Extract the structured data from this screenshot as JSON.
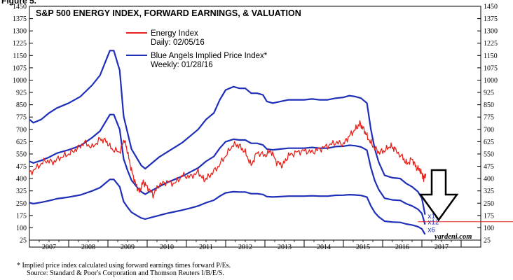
{
  "figure_label": "Figure 5.",
  "chart_data": {
    "type": "line",
    "title": "S&P 500 ENERGY INDEX, FORWARD EARNINGS, & VALUATION",
    "y_ticks": [
      1450,
      1375,
      1300,
      1225,
      1150,
      1075,
      1000,
      925,
      850,
      775,
      700,
      625,
      550,
      475,
      400,
      325,
      250,
      175,
      100,
      25
    ],
    "ylim": [
      25,
      1450
    ],
    "x_categories": [
      "2007",
      "2008",
      "2009",
      "2010",
      "2011",
      "2012",
      "2013",
      "2014",
      "2015",
      "2016",
      "2017"
    ],
    "xlim": [
      2006.0,
      2017.5
    ],
    "legend": [
      {
        "label": "Energy Index",
        "sub": "Daily: 02/05/16",
        "color": "#e8221b"
      },
      {
        "label": "Blue Angels Implied Price Index*",
        "sub": "Weekly: 01/28/16",
        "color": "#1f2fb8"
      }
    ],
    "series": [
      {
        "name": "Energy Index",
        "color": "#e8221b",
        "points": [
          [
            2006.0,
            430
          ],
          [
            2006.2,
            470
          ],
          [
            2006.4,
            510
          ],
          [
            2006.6,
            500
          ],
          [
            2006.8,
            530
          ],
          [
            2007.0,
            550
          ],
          [
            2007.2,
            580
          ],
          [
            2007.4,
            620
          ],
          [
            2007.6,
            590
          ],
          [
            2007.8,
            640
          ],
          [
            2007.95,
            630
          ],
          [
            2008.1,
            580
          ],
          [
            2008.3,
            560
          ],
          [
            2008.42,
            640
          ],
          [
            2008.5,
            560
          ],
          [
            2008.6,
            450
          ],
          [
            2008.7,
            370
          ],
          [
            2008.8,
            320
          ],
          [
            2008.9,
            380
          ],
          [
            2009.0,
            350
          ],
          [
            2009.15,
            300
          ],
          [
            2009.3,
            360
          ],
          [
            2009.5,
            380
          ],
          [
            2009.7,
            370
          ],
          [
            2009.9,
            420
          ],
          [
            2010.1,
            410
          ],
          [
            2010.3,
            440
          ],
          [
            2010.45,
            390
          ],
          [
            2010.6,
            420
          ],
          [
            2010.8,
            470
          ],
          [
            2011.0,
            540
          ],
          [
            2011.2,
            610
          ],
          [
            2011.35,
            600
          ],
          [
            2011.5,
            560
          ],
          [
            2011.65,
            480
          ],
          [
            2011.8,
            560
          ],
          [
            2012.0,
            540
          ],
          [
            2012.15,
            570
          ],
          [
            2012.3,
            500
          ],
          [
            2012.45,
            480
          ],
          [
            2012.6,
            540
          ],
          [
            2012.8,
            560
          ],
          [
            2013.0,
            570
          ],
          [
            2013.2,
            560
          ],
          [
            2013.4,
            580
          ],
          [
            2013.6,
            600
          ],
          [
            2013.8,
            620
          ],
          [
            2014.0,
            610
          ],
          [
            2014.15,
            660
          ],
          [
            2014.3,
            700
          ],
          [
            2014.42,
            735
          ],
          [
            2014.52,
            700
          ],
          [
            2014.62,
            650
          ],
          [
            2014.75,
            600
          ],
          [
            2014.9,
            560
          ],
          [
            2015.05,
            570
          ],
          [
            2015.2,
            600
          ],
          [
            2015.3,
            580
          ],
          [
            2015.5,
            530
          ],
          [
            2015.62,
            490
          ],
          [
            2015.75,
            520
          ],
          [
            2015.85,
            470
          ],
          [
            2015.95,
            450
          ],
          [
            2016.02,
            420
          ],
          [
            2016.05,
            400
          ],
          [
            2016.1,
            430
          ]
        ]
      },
      {
        "name": "Blue Angels x18",
        "label": "x18",
        "color": "#1f2fb8",
        "points": [
          [
            2006.0,
            760
          ],
          [
            2006.1,
            740
          ],
          [
            2006.3,
            760
          ],
          [
            2006.5,
            800
          ],
          [
            2006.7,
            830
          ],
          [
            2007.0,
            860
          ],
          [
            2007.3,
            900
          ],
          [
            2007.6,
            970
          ],
          [
            2007.8,
            1030
          ],
          [
            2007.95,
            1120
          ],
          [
            2008.05,
            1180
          ],
          [
            2008.15,
            1180
          ],
          [
            2008.3,
            1060
          ],
          [
            2008.4,
            780
          ],
          [
            2008.5,
            680
          ],
          [
            2008.6,
            580
          ],
          [
            2008.75,
            520
          ],
          [
            2008.85,
            480
          ],
          [
            2008.95,
            460
          ],
          [
            2009.1,
            490
          ],
          [
            2009.3,
            530
          ],
          [
            2009.5,
            560
          ],
          [
            2009.7,
            590
          ],
          [
            2009.9,
            620
          ],
          [
            2010.1,
            660
          ],
          [
            2010.3,
            700
          ],
          [
            2010.5,
            760
          ],
          [
            2010.7,
            800
          ],
          [
            2010.85,
            880
          ],
          [
            2011.0,
            940
          ],
          [
            2011.2,
            960
          ],
          [
            2011.35,
            950
          ],
          [
            2011.5,
            950
          ],
          [
            2011.65,
            920
          ],
          [
            2011.8,
            920
          ],
          [
            2011.95,
            910
          ],
          [
            2012.05,
            870
          ],
          [
            2012.2,
            860
          ],
          [
            2012.4,
            870
          ],
          [
            2012.6,
            880
          ],
          [
            2012.8,
            880
          ],
          [
            2013.0,
            880
          ],
          [
            2013.2,
            885
          ],
          [
            2013.4,
            880
          ],
          [
            2013.6,
            880
          ],
          [
            2013.8,
            890
          ],
          [
            2014.0,
            895
          ],
          [
            2014.15,
            905
          ],
          [
            2014.3,
            900
          ],
          [
            2014.45,
            890
          ],
          [
            2014.6,
            860
          ],
          [
            2014.7,
            700
          ],
          [
            2014.8,
            580
          ],
          [
            2014.9,
            500
          ],
          [
            2015.05,
            420
          ],
          [
            2015.25,
            405
          ],
          [
            2015.45,
            400
          ],
          [
            2015.6,
            370
          ],
          [
            2015.75,
            350
          ],
          [
            2015.9,
            320
          ],
          [
            2016.0,
            280
          ],
          [
            2016.08,
            180
          ]
        ]
      },
      {
        "name": "Blue Angels x12",
        "label": "x12",
        "color": "#1f2fb8",
        "points": [
          [
            2006.0,
            505
          ],
          [
            2006.1,
            495
          ],
          [
            2006.3,
            510
          ],
          [
            2006.5,
            530
          ],
          [
            2006.7,
            555
          ],
          [
            2007.0,
            575
          ],
          [
            2007.3,
            600
          ],
          [
            2007.6,
            650
          ],
          [
            2007.8,
            690
          ],
          [
            2007.95,
            750
          ],
          [
            2008.05,
            790
          ],
          [
            2008.15,
            790
          ],
          [
            2008.3,
            700
          ],
          [
            2008.4,
            520
          ],
          [
            2008.5,
            450
          ],
          [
            2008.6,
            390
          ],
          [
            2008.75,
            345
          ],
          [
            2008.85,
            320
          ],
          [
            2008.95,
            305
          ],
          [
            2009.1,
            325
          ],
          [
            2009.3,
            350
          ],
          [
            2009.5,
            375
          ],
          [
            2009.7,
            395
          ],
          [
            2009.9,
            415
          ],
          [
            2010.1,
            440
          ],
          [
            2010.3,
            465
          ],
          [
            2010.5,
            505
          ],
          [
            2010.7,
            535
          ],
          [
            2010.85,
            585
          ],
          [
            2011.0,
            625
          ],
          [
            2011.2,
            640
          ],
          [
            2011.35,
            635
          ],
          [
            2011.5,
            635
          ],
          [
            2011.65,
            615
          ],
          [
            2011.8,
            615
          ],
          [
            2011.95,
            605
          ],
          [
            2012.05,
            580
          ],
          [
            2012.2,
            575
          ],
          [
            2012.4,
            580
          ],
          [
            2012.6,
            585
          ],
          [
            2012.8,
            585
          ],
          [
            2013.0,
            585
          ],
          [
            2013.2,
            590
          ],
          [
            2013.4,
            585
          ],
          [
            2013.6,
            585
          ],
          [
            2013.8,
            595
          ],
          [
            2014.0,
            597
          ],
          [
            2014.15,
            603
          ],
          [
            2014.3,
            600
          ],
          [
            2014.45,
            593
          ],
          [
            2014.6,
            573
          ],
          [
            2014.7,
            467
          ],
          [
            2014.8,
            387
          ],
          [
            2014.9,
            333
          ],
          [
            2015.05,
            280
          ],
          [
            2015.25,
            270
          ],
          [
            2015.45,
            267
          ],
          [
            2015.6,
            247
          ],
          [
            2015.75,
            233
          ],
          [
            2015.9,
            213
          ],
          [
            2016.0,
            187
          ],
          [
            2016.08,
            120
          ]
        ]
      },
      {
        "name": "Blue Angels x6",
        "label": "x6",
        "color": "#1f2fb8",
        "points": [
          [
            2006.0,
            253
          ],
          [
            2006.1,
            247
          ],
          [
            2006.3,
            255
          ],
          [
            2006.5,
            265
          ],
          [
            2006.7,
            277
          ],
          [
            2007.0,
            287
          ],
          [
            2007.3,
            300
          ],
          [
            2007.6,
            325
          ],
          [
            2007.8,
            345
          ],
          [
            2007.95,
            375
          ],
          [
            2008.05,
            395
          ],
          [
            2008.15,
            395
          ],
          [
            2008.3,
            350
          ],
          [
            2008.4,
            260
          ],
          [
            2008.5,
            225
          ],
          [
            2008.6,
            195
          ],
          [
            2008.75,
            173
          ],
          [
            2008.85,
            160
          ],
          [
            2008.95,
            153
          ],
          [
            2009.1,
            163
          ],
          [
            2009.3,
            175
          ],
          [
            2009.5,
            188
          ],
          [
            2009.7,
            198
          ],
          [
            2009.9,
            208
          ],
          [
            2010.1,
            220
          ],
          [
            2010.3,
            233
          ],
          [
            2010.5,
            253
          ],
          [
            2010.7,
            268
          ],
          [
            2010.85,
            293
          ],
          [
            2011.0,
            313
          ],
          [
            2011.2,
            320
          ],
          [
            2011.35,
            318
          ],
          [
            2011.5,
            318
          ],
          [
            2011.65,
            308
          ],
          [
            2011.8,
            308
          ],
          [
            2011.95,
            303
          ],
          [
            2012.05,
            290
          ],
          [
            2012.2,
            288
          ],
          [
            2012.4,
            290
          ],
          [
            2012.6,
            293
          ],
          [
            2012.8,
            293
          ],
          [
            2013.0,
            293
          ],
          [
            2013.2,
            295
          ],
          [
            2013.4,
            293
          ],
          [
            2013.6,
            293
          ],
          [
            2013.8,
            298
          ],
          [
            2014.0,
            299
          ],
          [
            2014.15,
            302
          ],
          [
            2014.3,
            300
          ],
          [
            2014.45,
            297
          ],
          [
            2014.6,
            287
          ],
          [
            2014.7,
            233
          ],
          [
            2014.8,
            193
          ],
          [
            2014.9,
            167
          ],
          [
            2015.05,
            140
          ],
          [
            2015.25,
            135
          ],
          [
            2015.45,
            133
          ],
          [
            2015.6,
            123
          ],
          [
            2015.75,
            117
          ],
          [
            2015.9,
            107
          ],
          [
            2016.0,
            93
          ],
          [
            2016.08,
            60
          ]
        ]
      }
    ],
    "reference_line": {
      "value": 137,
      "color": "#e8221b"
    },
    "annotation": "down arrow"
  },
  "credit": "yardeni.com",
  "footnote_line1": "*  Implied price index calculated using forward earnings times forward P/Es.",
  "footnote_line2": "Source: Standard & Poor's Corporation and Thomson Reuters I/B/E/S."
}
